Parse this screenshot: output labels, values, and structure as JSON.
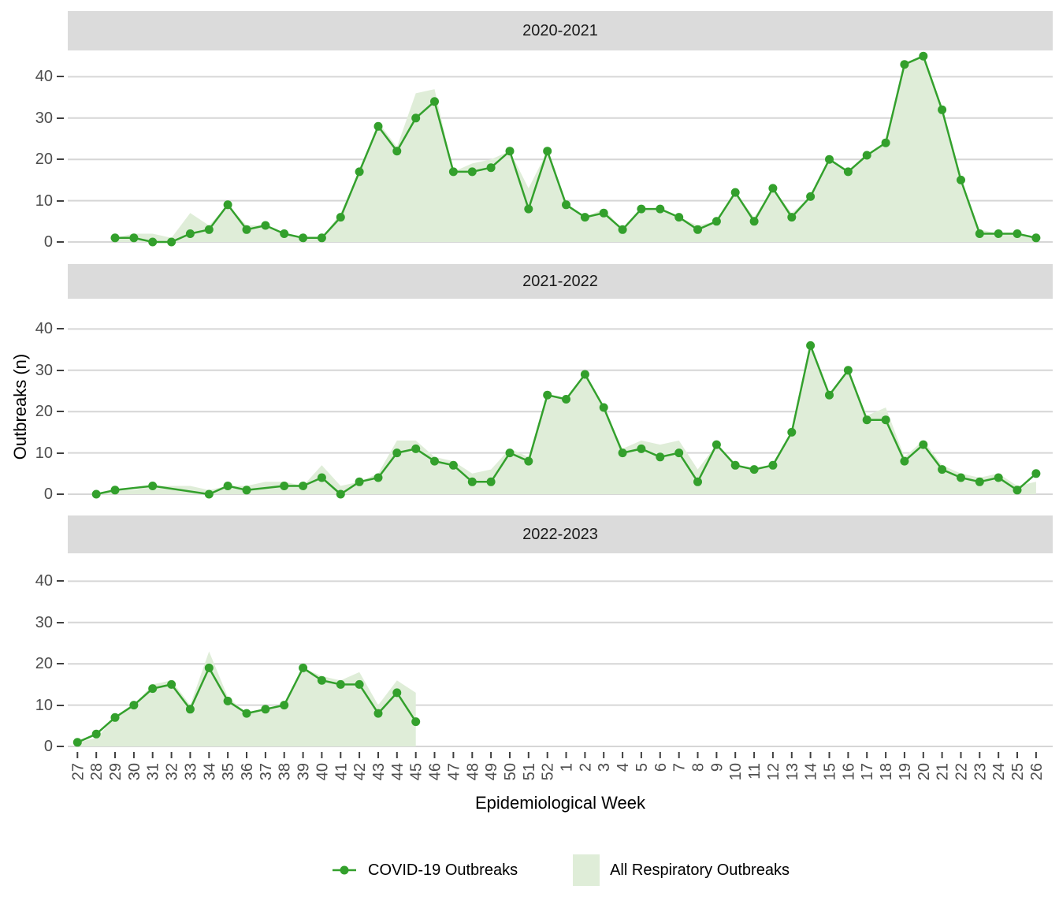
{
  "figure": {
    "y_axis_title": "Outbreaks (n)",
    "x_axis_title": "Epidemiological Week",
    "colors": {
      "covid_line": "#33A02C",
      "respiratory_fill": "#DFEDD8",
      "gridline": "#D6D6D6",
      "strip_background": "#DBDBDB",
      "axis_text": "#4D4D4D",
      "tick_mark": "#404040"
    }
  },
  "legend": {
    "items": [
      {
        "label": "COVID-19 Outbreaks",
        "key": "green-line-with-point"
      },
      {
        "label": "All Respiratory Outbreaks",
        "key": "light-green-area-swatch"
      }
    ]
  },
  "chart_data": {
    "type": "line",
    "title": "",
    "xlabel": "Epidemiological Week",
    "ylabel": "Outbreaks (n)",
    "y_ticks": [
      0,
      10,
      20,
      30,
      40
    ],
    "ylim": [
      0,
      46
    ],
    "grid": "horizontal-major-only",
    "legend_position": "bottom",
    "x_categories": [
      "27",
      "28",
      "29",
      "30",
      "31",
      "32",
      "33",
      "34",
      "35",
      "36",
      "37",
      "38",
      "39",
      "40",
      "41",
      "42",
      "43",
      "44",
      "45",
      "46",
      "47",
      "48",
      "49",
      "50",
      "51",
      "52",
      "1",
      "2",
      "3",
      "4",
      "5",
      "6",
      "7",
      "8",
      "9",
      "10",
      "11",
      "12",
      "13",
      "14",
      "15",
      "16",
      "17",
      "18",
      "19",
      "20",
      "21",
      "22",
      "23",
      "24",
      "25",
      "26"
    ],
    "facets": [
      {
        "title": "2020-2021",
        "series": [
          {
            "name": "COVID-19 Outbreaks",
            "type": "line",
            "values": [
              null,
              null,
              1,
              1,
              0,
              0,
              2,
              3,
              9,
              3,
              4,
              2,
              1,
              1,
              6,
              17,
              28,
              22,
              30,
              34,
              17,
              17,
              18,
              22,
              8,
              22,
              9,
              6,
              7,
              3,
              8,
              8,
              6,
              3,
              5,
              12,
              5,
              13,
              6,
              11,
              20,
              17,
              21,
              24,
              43,
              45,
              32,
              15,
              2,
              2,
              2,
              1
            ]
          },
          {
            "name": "All Respiratory Outbreaks",
            "type": "area",
            "values": [
              null,
              null,
              1,
              2,
              2,
              1,
              7,
              4,
              9,
              4,
              4,
              2,
              1,
              1,
              7,
              17,
              29,
              23,
              36,
              37,
              17,
              19,
              20,
              22,
              13,
              22,
              9,
              6,
              8,
              3,
              8,
              8,
              6,
              4,
              5,
              12,
              6,
              13,
              7,
              11,
              20,
              17,
              21,
              24,
              43,
              45,
              32,
              15,
              3,
              2,
              2,
              1
            ]
          }
        ]
      },
      {
        "title": "2021-2022",
        "series": [
          {
            "name": "COVID-19 Outbreaks",
            "type": "line",
            "values": [
              null,
              0,
              1,
              null,
              2,
              null,
              null,
              0,
              2,
              1,
              null,
              2,
              2,
              4,
              0,
              3,
              4,
              10,
              11,
              8,
              7,
              3,
              3,
              10,
              8,
              24,
              23,
              29,
              21,
              10,
              11,
              9,
              10,
              3,
              12,
              7,
              6,
              7,
              15,
              36,
              24,
              30,
              18,
              18,
              8,
              12,
              6,
              4,
              3,
              4,
              1,
              5
            ]
          },
          {
            "name": "All Respiratory Outbreaks",
            "type": "area",
            "values": [
              null,
              0,
              1,
              1,
              2,
              2,
              2,
              1,
              2,
              2,
              3,
              3,
              2,
              7,
              2,
              3,
              5,
              13,
              13,
              9,
              8,
              5,
              6,
              11,
              9,
              24,
              23,
              29,
              21,
              11,
              13,
              12,
              13,
              6,
              12,
              7,
              6,
              7,
              15,
              36,
              24,
              30,
              19,
              21,
              9,
              13,
              7,
              5,
              4,
              5,
              2,
              3
            ]
          }
        ]
      },
      {
        "title": "2022-2023",
        "series": [
          {
            "name": "COVID-19 Outbreaks",
            "type": "line",
            "values": [
              1,
              3,
              7,
              10,
              14,
              15,
              9,
              19,
              11,
              8,
              9,
              10,
              19,
              16,
              15,
              15,
              8,
              13,
              6,
              null,
              null,
              null,
              null,
              null,
              null,
              null,
              null,
              null,
              null,
              null,
              null,
              null,
              null,
              null,
              null,
              null,
              null,
              null,
              null,
              null,
              null,
              null,
              null,
              null,
              null,
              null,
              null,
              null,
              null,
              null,
              null,
              null
            ]
          },
          {
            "name": "All Respiratory Outbreaks",
            "type": "area",
            "values": [
              1,
              2,
              7,
              10,
              15,
              16,
              10,
              23,
              12,
              8,
              9,
              10,
              19,
              17,
              16,
              18,
              10,
              16,
              13,
              null,
              null,
              null,
              null,
              null,
              null,
              null,
              null,
              null,
              null,
              null,
              null,
              null,
              null,
              null,
              null,
              null,
              null,
              null,
              null,
              null,
              null,
              null,
              null,
              null,
              null,
              null,
              null,
              null,
              null,
              null,
              null,
              null
            ]
          }
        ]
      }
    ]
  }
}
